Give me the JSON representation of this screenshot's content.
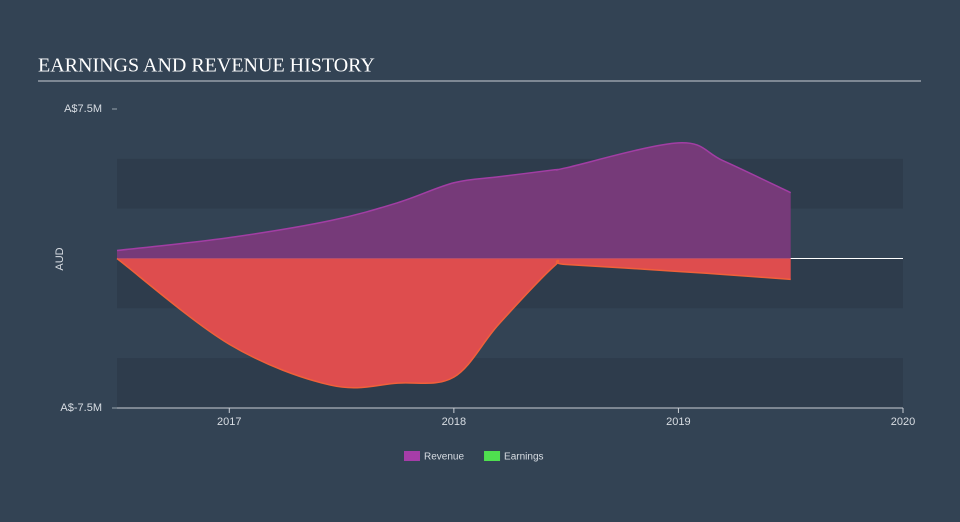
{
  "chart_data": {
    "type": "area",
    "title": "EARNINGS AND REVENUE HISTORY",
    "ylabel": "AUD",
    "x": [
      2016.5,
      2017.0,
      2017.45,
      2017.75,
      2018.0,
      2018.2,
      2018.45,
      2018.5,
      2019.0,
      2019.2,
      2019.5
    ],
    "series": [
      {
        "name": "Revenue",
        "color": "#7a3a7b",
        "line_color": "#a23ea4",
        "legend_color": "#a63da8",
        "values": [
          0.4,
          1.05,
          1.9,
          2.8,
          3.8,
          4.1,
          4.45,
          4.55,
          5.8,
          4.9,
          3.3
        ]
      },
      {
        "name": "Earnings",
        "color": "#e84e4e",
        "line_color": "#f0603a",
        "legend_color": "#4fe04f",
        "values": [
          0,
          -4.3,
          -6.35,
          -6.25,
          -5.95,
          -3.3,
          -0.35,
          -0.3,
          -0.65,
          -0.8,
          -1.05
        ]
      }
    ],
    "xlim": [
      2016.5,
      2020
    ],
    "xticks": [
      2017,
      2018,
      2019,
      2020
    ],
    "ylim": [
      -7.5,
      7.5
    ],
    "yticks": [
      {
        "value": 7.5,
        "label": "A$7.5M"
      },
      {
        "value": -7.5,
        "label": "A$-7.5M"
      }
    ],
    "bands": true
  }
}
